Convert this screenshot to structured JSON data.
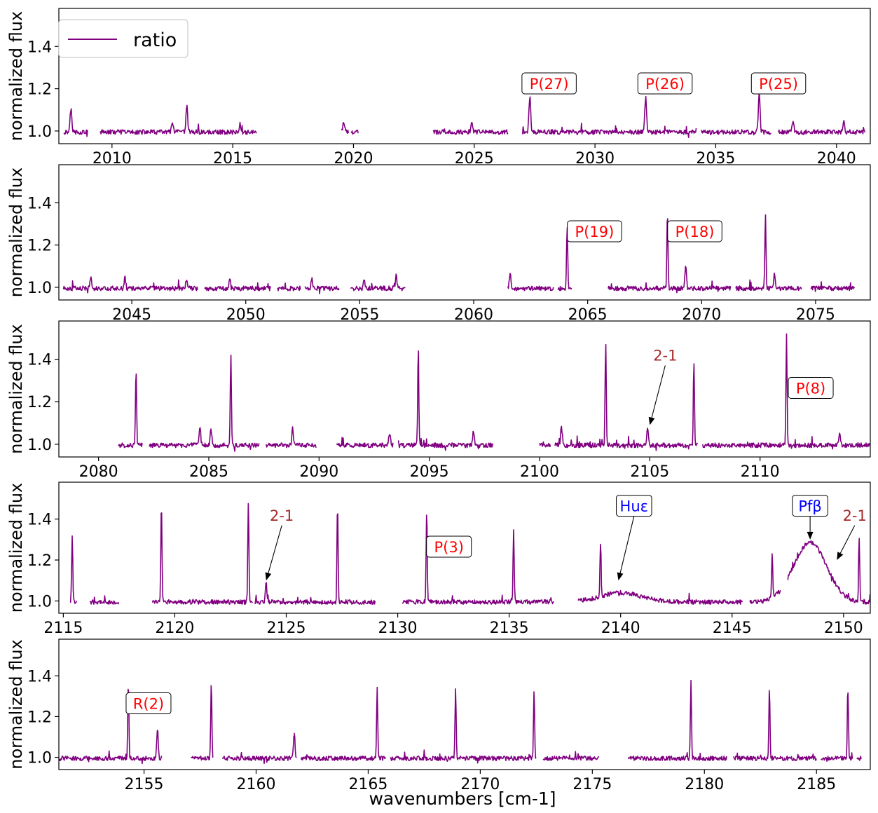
{
  "figure": {
    "xlabel": "wavenumbers [cm-1]",
    "legend": {
      "label": "ratio",
      "color": "#800080",
      "placement": "top-left"
    },
    "line_color": "#800080",
    "annotation_colors": {
      "red": "#ff0000",
      "darkred": "#a52a2a",
      "blue": "#0000ff"
    }
  },
  "chart_data": [
    {
      "type": "line",
      "panel": 1,
      "ylabel": "normalized flux",
      "xlim": [
        2007.8,
        2041.4
      ],
      "ylim": [
        0.94,
        1.58
      ],
      "xticks": [
        2010,
        2015,
        2020,
        2025,
        2030,
        2035,
        2040
      ],
      "yticks": [
        1.0,
        1.2,
        1.4
      ],
      "segments": [
        [
          2008.0,
          2009.0
        ],
        [
          2009.5,
          2016.0
        ],
        [
          2019.5,
          2019.8
        ],
        [
          2019.9,
          2020.2
        ],
        [
          2023.3,
          2026.4
        ],
        [
          2027.0,
          2034.2
        ],
        [
          2034.4,
          2037.3
        ],
        [
          2037.6,
          2041.2
        ]
      ],
      "peaks": [
        {
          "x": 2008.3,
          "y": 1.13
        },
        {
          "x": 2012.5,
          "y": 1.04
        },
        {
          "x": 2013.1,
          "y": 1.12
        },
        {
          "x": 2015.3,
          "y": 1.04
        },
        {
          "x": 2019.6,
          "y": 1.05
        },
        {
          "x": 2024.9,
          "y": 1.04
        },
        {
          "x": 2027.3,
          "y": 1.17
        },
        {
          "x": 2032.1,
          "y": 1.17
        },
        {
          "x": 2036.8,
          "y": 1.18
        },
        {
          "x": 2038.2,
          "y": 1.05
        },
        {
          "x": 2040.3,
          "y": 1.05
        }
      ],
      "annotations": [
        {
          "text": "P(27)",
          "x": 2028.1,
          "y": 1.225,
          "color": "red"
        },
        {
          "text": "P(26)",
          "x": 2032.9,
          "y": 1.225,
          "color": "red"
        },
        {
          "text": "P(25)",
          "x": 2037.6,
          "y": 1.225,
          "color": "red"
        }
      ]
    },
    {
      "type": "line",
      "panel": 2,
      "ylabel": "normalized flux",
      "xlim": [
        2041.8,
        2077.4
      ],
      "ylim": [
        0.94,
        1.58
      ],
      "xticks": [
        2045,
        2050,
        2055,
        2060,
        2065,
        2070,
        2075
      ],
      "yticks": [
        1.0,
        1.2,
        1.4
      ],
      "segments": [
        [
          2042.0,
          2047.9
        ],
        [
          2048.2,
          2051.1
        ],
        [
          2051.4,
          2052.4
        ],
        [
          2052.6,
          2054.1
        ],
        [
          2054.6,
          2057.0
        ],
        [
          2061.5,
          2063.5
        ],
        [
          2063.7,
          2064.3
        ],
        [
          2065.9,
          2071.3
        ],
        [
          2071.5,
          2074.4
        ],
        [
          2074.8,
          2076.7
        ]
      ],
      "peaks": [
        {
          "x": 2043.2,
          "y": 1.05
        },
        {
          "x": 2044.7,
          "y": 1.05
        },
        {
          "x": 2047.4,
          "y": 1.04
        },
        {
          "x": 2049.3,
          "y": 1.05
        },
        {
          "x": 2052.9,
          "y": 1.05
        },
        {
          "x": 2055.2,
          "y": 1.04
        },
        {
          "x": 2056.6,
          "y": 1.06
        },
        {
          "x": 2061.6,
          "y": 1.07
        },
        {
          "x": 2064.1,
          "y": 1.3
        },
        {
          "x": 2068.5,
          "y": 1.35
        },
        {
          "x": 2069.3,
          "y": 1.11
        },
        {
          "x": 2072.8,
          "y": 1.35
        },
        {
          "x": 2073.2,
          "y": 1.07
        }
      ],
      "annotations": [
        {
          "text": "P(19)",
          "x": 2065.3,
          "y": 1.265,
          "color": "red"
        },
        {
          "text": "P(18)",
          "x": 2069.7,
          "y": 1.265,
          "color": "red"
        }
      ]
    },
    {
      "type": "line",
      "panel": 3,
      "ylabel": "normalized flux",
      "xlim": [
        2078.2,
        2115.0
      ],
      "ylim": [
        0.94,
        1.58
      ],
      "xticks": [
        2080,
        2085,
        2090,
        2095,
        2100,
        2105,
        2110
      ],
      "yticks": [
        1.0,
        1.2,
        1.4
      ],
      "segments": [
        [
          2080.9,
          2082.0
        ],
        [
          2082.3,
          2087.3
        ],
        [
          2087.6,
          2089.9
        ],
        [
          2090.8,
          2093.4
        ],
        [
          2093.6,
          2097.9
        ],
        [
          2100.0,
          2100.5
        ],
        [
          2100.7,
          2107.2
        ],
        [
          2107.4,
          2115.0
        ]
      ],
      "peaks": [
        {
          "x": 2081.7,
          "y": 1.37
        },
        {
          "x": 2084.6,
          "y": 1.08
        },
        {
          "x": 2085.1,
          "y": 1.08
        },
        {
          "x": 2086.0,
          "y": 1.43
        },
        {
          "x": 2088.8,
          "y": 1.07
        },
        {
          "x": 2093.2,
          "y": 1.06
        },
        {
          "x": 2094.5,
          "y": 1.46
        },
        {
          "x": 2097.0,
          "y": 1.07
        },
        {
          "x": 2101.0,
          "y": 1.1
        },
        {
          "x": 2103.0,
          "y": 1.48
        },
        {
          "x": 2104.9,
          "y": 1.08
        },
        {
          "x": 2107.0,
          "y": 1.4
        },
        {
          "x": 2111.2,
          "y": 1.52
        },
        {
          "x": 2113.6,
          "y": 1.06
        }
      ],
      "annotations": [
        {
          "text": "2-1",
          "x": 2105.7,
          "y": 1.42,
          "color": "darkred",
          "boxed": false,
          "arrow_to": {
            "x": 2105.0,
            "y": 1.09
          }
        },
        {
          "text": "P(8)",
          "x": 2112.3,
          "y": 1.265,
          "color": "red"
        }
      ]
    },
    {
      "type": "line",
      "panel": 4,
      "ylabel": "normalized flux",
      "xlim": [
        2114.8,
        2151.2
      ],
      "ylim": [
        0.94,
        1.58
      ],
      "xticks": [
        2115,
        2120,
        2125,
        2130,
        2135,
        2140,
        2145,
        2150
      ],
      "yticks": [
        1.0,
        1.2,
        1.4
      ],
      "segments": [
        [
          2115.3,
          2115.6
        ],
        [
          2116.2,
          2117.5
        ],
        [
          2119.0,
          2123.5
        ],
        [
          2123.6,
          2129.0
        ],
        [
          2130.2,
          2137.0
        ],
        [
          2138.1,
          2145.5
        ],
        [
          2145.8,
          2147.2
        ],
        [
          2147.5,
          2151.2
        ]
      ],
      "peaks": [
        {
          "x": 2115.4,
          "y": 1.32
        },
        {
          "x": 2119.4,
          "y": 1.49
        },
        {
          "x": 2123.3,
          "y": 1.5
        },
        {
          "x": 2124.1,
          "y": 1.09
        },
        {
          "x": 2127.3,
          "y": 1.48
        },
        {
          "x": 2131.3,
          "y": 1.45
        },
        {
          "x": 2135.2,
          "y": 1.35
        },
        {
          "x": 2139.1,
          "y": 1.27
        },
        {
          "x": 2146.8,
          "y": 1.23
        },
        {
          "x": 2150.7,
          "y": 1.31
        }
      ],
      "annotations": [
        {
          "text": "2-1",
          "x": 2124.8,
          "y": 1.42,
          "color": "darkred",
          "boxed": false,
          "arrow_to": {
            "x": 2124.1,
            "y": 1.1
          }
        },
        {
          "text": "P(3)",
          "x": 2132.3,
          "y": 1.265,
          "color": "red"
        },
        {
          "text": "Huε",
          "x": 2140.6,
          "y": 1.465,
          "color": "blue",
          "arrow_to": {
            "x": 2139.9,
            "y": 1.1
          }
        },
        {
          "text": "Pfβ",
          "x": 2148.5,
          "y": 1.465,
          "color": "blue",
          "arrow_to": {
            "x": 2148.5,
            "y": 1.3
          }
        },
        {
          "text": "2-1",
          "x": 2150.5,
          "y": 1.42,
          "color": "darkred",
          "boxed": false,
          "arrow_to": {
            "x": 2149.7,
            "y": 1.2
          }
        }
      ]
    },
    {
      "type": "line",
      "panel": 5,
      "ylabel": "normalized flux",
      "xlim": [
        2151.2,
        2187.4
      ],
      "ylim": [
        0.94,
        1.58
      ],
      "xticks": [
        2155,
        2160,
        2165,
        2170,
        2175,
        2180,
        2185
      ],
      "yticks": [
        1.0,
        1.2,
        1.4
      ],
      "segments": [
        [
          2151.2,
          2155.8
        ],
        [
          2157.1,
          2158.1
        ],
        [
          2158.5,
          2161.7
        ],
        [
          2161.7,
          2161.8
        ],
        [
          2162.0,
          2165.8
        ],
        [
          2166.0,
          2172.5
        ],
        [
          2172.8,
          2175.3
        ],
        [
          2176.6,
          2181.0
        ],
        [
          2181.3,
          2185.0
        ],
        [
          2185.2,
          2186.6
        ],
        [
          2186.8,
          2187.0
        ]
      ],
      "peaks": [
        {
          "x": 2154.3,
          "y": 1.38
        },
        {
          "x": 2155.6,
          "y": 1.14
        },
        {
          "x": 2158.0,
          "y": 1.37
        },
        {
          "x": 2161.7,
          "y": 1.13
        },
        {
          "x": 2165.4,
          "y": 1.36
        },
        {
          "x": 2168.9,
          "y": 1.35
        },
        {
          "x": 2172.4,
          "y": 1.34
        },
        {
          "x": 2179.4,
          "y": 1.39
        },
        {
          "x": 2182.9,
          "y": 1.35
        },
        {
          "x": 2186.4,
          "y": 1.34
        }
      ],
      "annotations": [
        {
          "text": "R(2)",
          "x": 2155.2,
          "y": 1.265,
          "color": "red"
        }
      ]
    }
  ]
}
